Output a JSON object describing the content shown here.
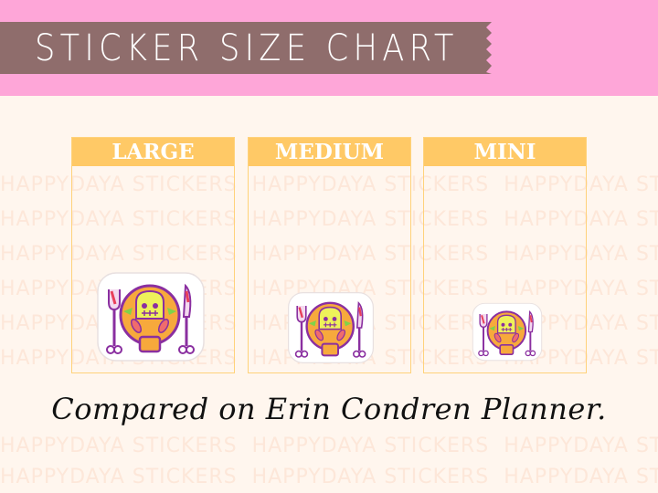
{
  "header": {
    "title": "STICKER SIZE CHART"
  },
  "watermark": {
    "text": "HAPPYDAYA STICKERS"
  },
  "sizes": [
    {
      "label": "LARGE"
    },
    {
      "label": "MEDIUM"
    },
    {
      "label": "MINI"
    }
  ],
  "caption": "Compared on Erin Condren Planner.",
  "colors": {
    "header_band": "#fea6d8",
    "banner": "#8f6d6c",
    "background": "#fff6ee",
    "box_header": "#ffc966",
    "box_border": "#ffd27a"
  }
}
